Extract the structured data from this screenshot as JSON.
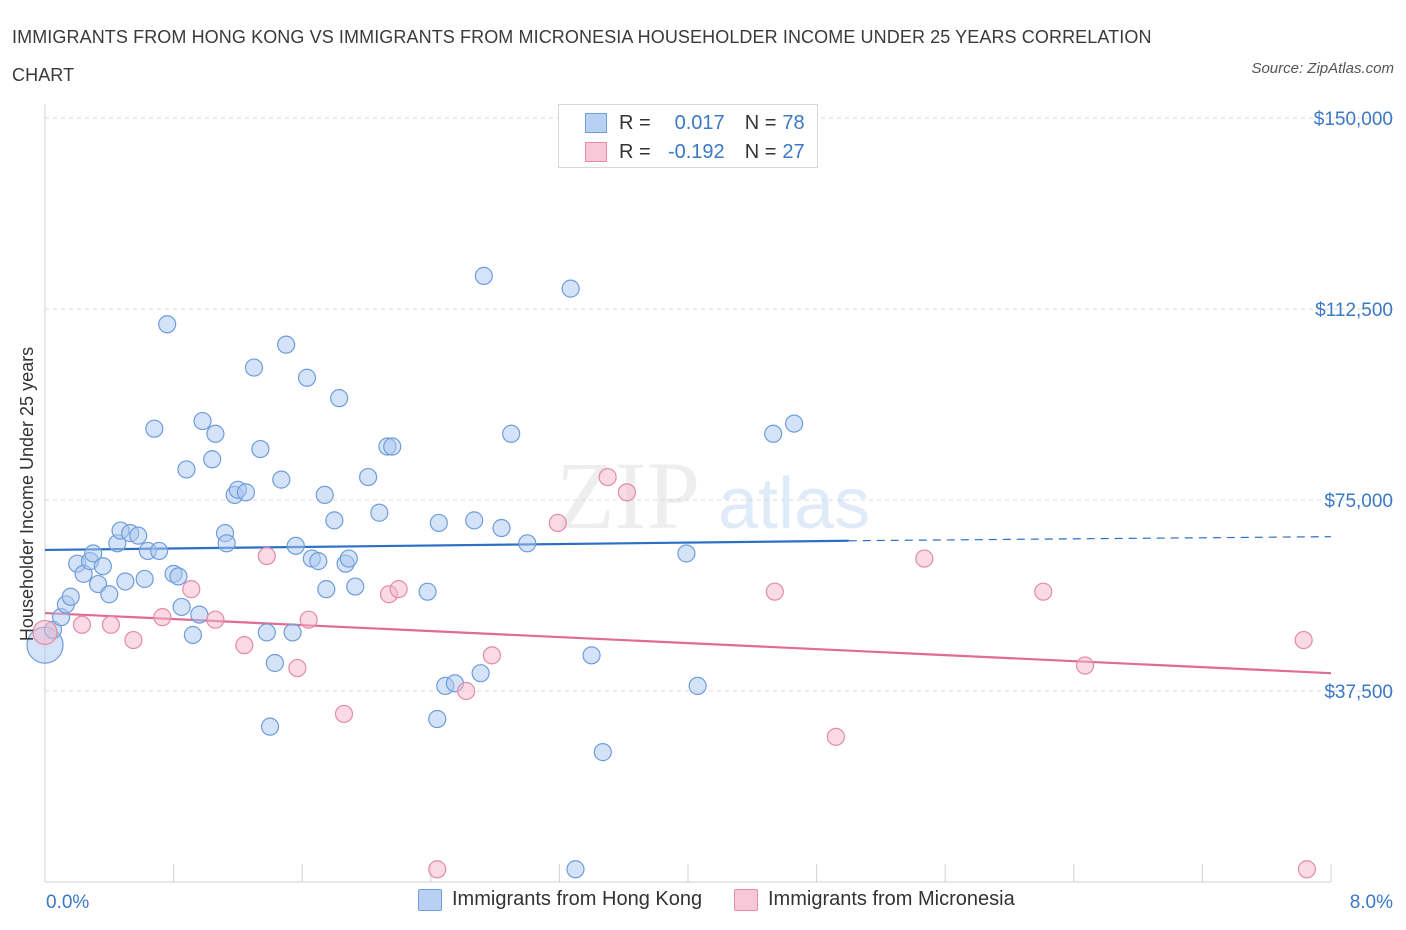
{
  "title": "IMMIGRANTS FROM HONG KONG VS IMMIGRANTS FROM MICRONESIA HOUSEHOLDER INCOME UNDER 25 YEARS CORRELATION CHART",
  "source": "Source: ZipAtlas.com",
  "watermark": {
    "zip": "ZIP",
    "atlas": "atlas"
  },
  "legend": {
    "rows": [
      {
        "r_label": "R =",
        "r_value": "0.017",
        "n_label": "N =",
        "n_value": "78"
      },
      {
        "r_label": "R =",
        "r_value": "-0.192",
        "n_label": "N =",
        "n_value": "27"
      }
    ]
  },
  "colors": {
    "hong_kong_fill": "#a9c7ef",
    "hong_kong_stroke": "#6f9ddb",
    "hong_kong_line": "#2d6fc6",
    "micronesia_fill": "#f5b8cc",
    "micronesia_stroke": "#e58aa8",
    "micronesia_line": "#e06b93",
    "tick_text": "#3b78c6",
    "grid": "#d9d9d9"
  },
  "chart_data": {
    "type": "scatter",
    "title": "IMMIGRANTS FROM HONG KONG VS IMMIGRANTS FROM MICRONESIA HOUSEHOLDER INCOME UNDER 25 YEARS CORRELATION CHART",
    "xlabel": "",
    "ylabel": "Householder Income Under 25 years",
    "xlim": [
      0,
      8
    ],
    "ylim": [
      0,
      150000
    ],
    "x_tick_labels": [
      "0.0%",
      "8.0%"
    ],
    "y_ticks": [
      37500,
      75000,
      112500,
      150000
    ],
    "y_tick_labels": [
      "$37,500",
      "$75,000",
      "$112,500",
      "$150,000"
    ],
    "grid": true,
    "legend_position": "top-center",
    "series": [
      {
        "name": "Immigrants from Hong Kong",
        "points": [
          [
            0.0,
            46500
          ],
          [
            0.05,
            49500
          ],
          [
            0.1,
            52000
          ],
          [
            0.13,
            54500
          ],
          [
            0.16,
            56000
          ],
          [
            0.2,
            62500
          ],
          [
            0.24,
            60500
          ],
          [
            0.28,
            63000
          ],
          [
            0.3,
            64500
          ],
          [
            0.33,
            58500
          ],
          [
            0.36,
            62000
          ],
          [
            0.4,
            56500
          ],
          [
            0.45,
            66500
          ],
          [
            0.47,
            69000
          ],
          [
            0.5,
            59000
          ],
          [
            0.53,
            68500
          ],
          [
            0.58,
            68000
          ],
          [
            0.62,
            59500
          ],
          [
            0.64,
            65000
          ],
          [
            0.68,
            89000
          ],
          [
            0.71,
            65000
          ],
          [
            0.76,
            109500
          ],
          [
            0.8,
            60500
          ],
          [
            0.83,
            60000
          ],
          [
            0.85,
            54000
          ],
          [
            0.88,
            81000
          ],
          [
            0.92,
            48500
          ],
          [
            0.96,
            52500
          ],
          [
            0.98,
            90500
          ],
          [
            1.04,
            83000
          ],
          [
            1.06,
            88000
          ],
          [
            1.12,
            68500
          ],
          [
            1.13,
            66500
          ],
          [
            1.18,
            76000
          ],
          [
            1.2,
            77000
          ],
          [
            1.25,
            76500
          ],
          [
            1.3,
            101000
          ],
          [
            1.34,
            85000
          ],
          [
            1.38,
            49000
          ],
          [
            1.4,
            30500
          ],
          [
            1.43,
            43000
          ],
          [
            1.47,
            79000
          ],
          [
            1.5,
            105500
          ],
          [
            1.54,
            49000
          ],
          [
            1.56,
            66000
          ],
          [
            1.63,
            99000
          ],
          [
            1.66,
            63500
          ],
          [
            1.7,
            63000
          ],
          [
            1.74,
            76000
          ],
          [
            1.75,
            57500
          ],
          [
            1.8,
            71000
          ],
          [
            1.83,
            95000
          ],
          [
            1.87,
            62500
          ],
          [
            1.89,
            63500
          ],
          [
            1.93,
            58000
          ],
          [
            2.01,
            79500
          ],
          [
            2.08,
            72500
          ],
          [
            2.13,
            85500
          ],
          [
            2.16,
            85500
          ],
          [
            2.38,
            57000
          ],
          [
            2.44,
            32000
          ],
          [
            2.45,
            70500
          ],
          [
            2.49,
            38500
          ],
          [
            2.55,
            39000
          ],
          [
            2.67,
            71000
          ],
          [
            2.71,
            41000
          ],
          [
            2.73,
            119000
          ],
          [
            2.84,
            69500
          ],
          [
            2.9,
            88000
          ],
          [
            3.0,
            66500
          ],
          [
            3.27,
            116500
          ],
          [
            3.3,
            2500
          ],
          [
            3.4,
            44500
          ],
          [
            3.47,
            25500
          ],
          [
            3.99,
            64500
          ],
          [
            4.06,
            38500
          ],
          [
            4.53,
            88000
          ],
          [
            4.66,
            90000
          ]
        ],
        "trend": {
          "x": [
            0,
            5.0
          ],
          "y": [
            65200,
            67000
          ],
          "dashed_extension": {
            "x": [
              5.0,
              8.0
            ],
            "y": [
              67000,
              67800
            ]
          }
        }
      },
      {
        "name": "Immigrants from Micronesia",
        "points": [
          [
            0.0,
            49000
          ],
          [
            0.23,
            50500
          ],
          [
            0.41,
            50500
          ],
          [
            0.55,
            47500
          ],
          [
            0.73,
            52000
          ],
          [
            0.91,
            57500
          ],
          [
            1.06,
            51500
          ],
          [
            1.24,
            46500
          ],
          [
            1.38,
            64000
          ],
          [
            1.57,
            42000
          ],
          [
            1.64,
            51500
          ],
          [
            1.86,
            33000
          ],
          [
            2.14,
            56500
          ],
          [
            2.2,
            57500
          ],
          [
            2.44,
            2500
          ],
          [
            2.62,
            37500
          ],
          [
            2.78,
            44500
          ],
          [
            3.19,
            70500
          ],
          [
            3.5,
            79500
          ],
          [
            3.62,
            76500
          ],
          [
            4.54,
            57000
          ],
          [
            4.92,
            28500
          ],
          [
            5.47,
            63500
          ],
          [
            6.21,
            57000
          ],
          [
            6.47,
            42500
          ],
          [
            7.83,
            47500
          ],
          [
            7.85,
            2500
          ]
        ],
        "trend": {
          "x": [
            0,
            8.0
          ],
          "y": [
            52800,
            41000
          ]
        }
      }
    ]
  },
  "bottom_legend": {
    "hong_kong": "Immigrants from Hong Kong",
    "micronesia": "Immigrants from Micronesia"
  }
}
